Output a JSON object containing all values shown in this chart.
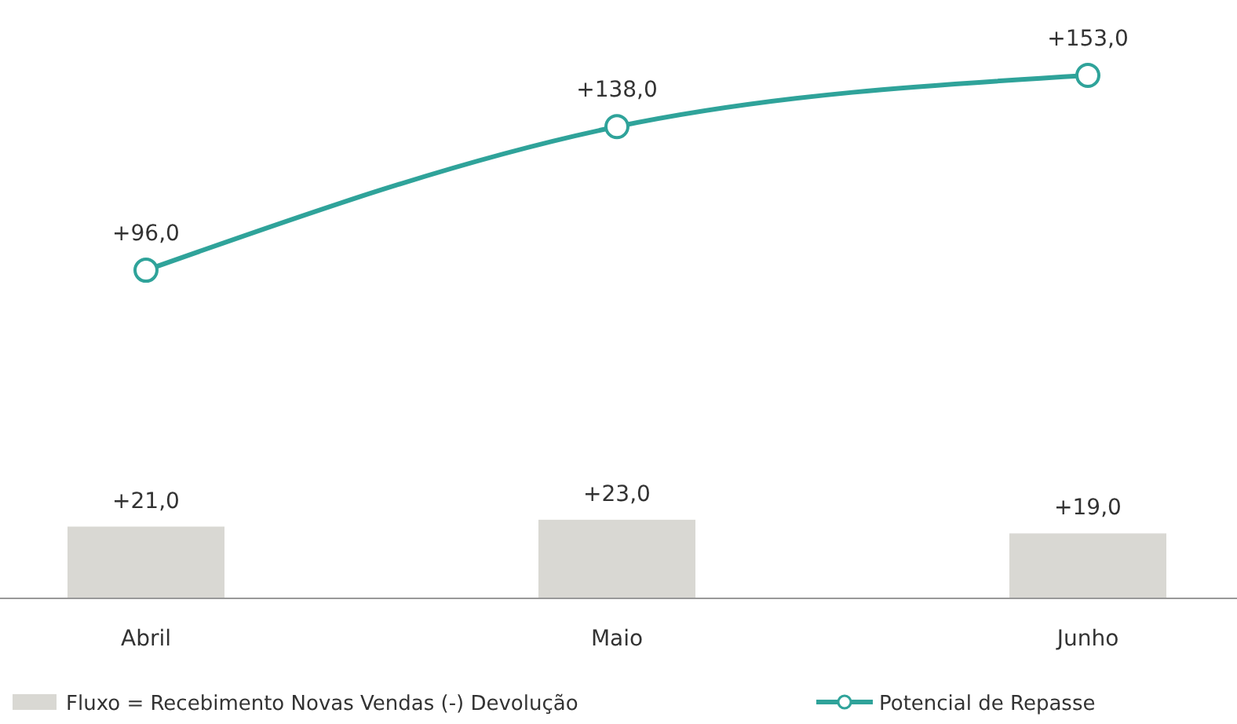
{
  "chart_data": {
    "type": "bar",
    "categories": [
      "Abril",
      "Maio",
      "Junho"
    ],
    "legend": "bottom",
    "series": [
      {
        "name": "Fluxo = Recebimento Novas Vendas (-) Devolução",
        "color": "#d9d8d3",
        "values": [
          21,
          23,
          19
        ],
        "value_labels": [
          "+21,0",
          "+23,0",
          "+19,0"
        ]
      },
      {
        "name": "Potencial de Repasse",
        "type": "line",
        "color": "#2fa39a",
        "marker": "circle",
        "values": [
          96,
          138,
          153
        ],
        "value_labels": [
          "+96,0",
          "+138,0",
          "+153,0"
        ]
      }
    ]
  }
}
